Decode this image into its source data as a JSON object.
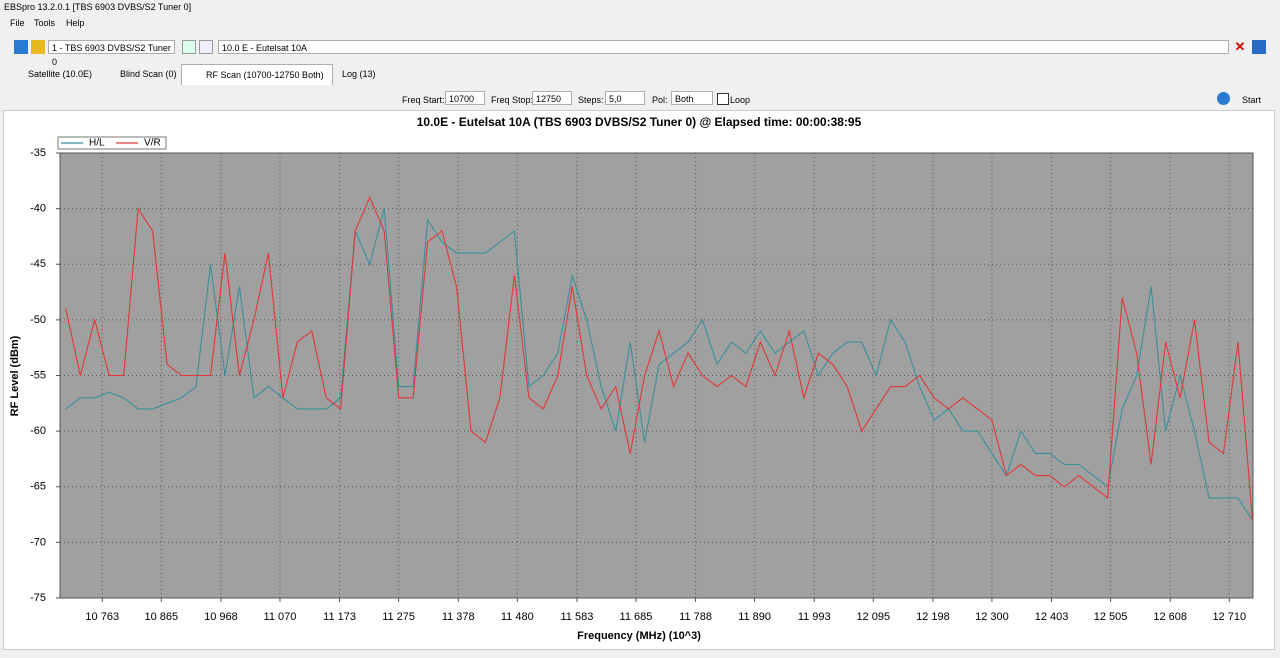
{
  "window": {
    "title": "EBSpro 13.2.0.1 [TBS 6903 DVBS/S2 Tuner 0]",
    "menu": [
      "File",
      "Tools",
      "Help"
    ]
  },
  "toolbar": {
    "tuner": "1 - TBS 6903 DVBS/S2 Tuner 0",
    "satellite": "10.0 E - Eutelsat 10A"
  },
  "tabs": [
    "Satellite (10.0E)",
    "Blind Scan (0)",
    "RF Scan (10700-12750 Both)",
    "Log (13)"
  ],
  "controls": {
    "freq_start_label": "Freq Start:",
    "freq_start": "10700",
    "freq_stop_label": "Freq Stop:",
    "freq_stop": "12750",
    "steps_label": "Steps:",
    "steps": "5,0",
    "pol_label": "Pol:",
    "pol": "Both",
    "loop": "Loop",
    "start": "Start"
  },
  "chart_data": {
    "type": "line",
    "title": "10.0E - Eutelsat 10A (TBS 6903 DVBS/S2 Tuner 0) @ Elapsed time: 00:00:38:95",
    "x_label": "Frequency (MHz) (10^3)",
    "y_label": "RF Level (dBm)",
    "grid": true,
    "xlim": [
      10690,
      12751
    ],
    "ylim": [
      -75,
      -35
    ],
    "xticks": [
      {
        "value": 10763,
        "label": "10 763"
      },
      {
        "value": 10865,
        "label": "10 865"
      },
      {
        "value": 10968,
        "label": "10 968"
      },
      {
        "value": 11070,
        "label": "11 070"
      },
      {
        "value": 11173,
        "label": "11 173"
      },
      {
        "value": 11275,
        "label": "11 275"
      },
      {
        "value": 11378,
        "label": "11 378"
      },
      {
        "value": 11480,
        "label": "11 480"
      },
      {
        "value": 11583,
        "label": "11 583"
      },
      {
        "value": 11685,
        "label": "11 685"
      },
      {
        "value": 11788,
        "label": "11 788"
      },
      {
        "value": 11890,
        "label": "11 890"
      },
      {
        "value": 11993,
        "label": "11 993"
      },
      {
        "value": 12095,
        "label": "12 095"
      },
      {
        "value": 12198,
        "label": "12 198"
      },
      {
        "value": 12300,
        "label": "12 300"
      },
      {
        "value": 12403,
        "label": "12 403"
      },
      {
        "value": 12505,
        "label": "12 505"
      },
      {
        "value": 12608,
        "label": "12 608"
      },
      {
        "value": 12710,
        "label": "12 710"
      }
    ],
    "yticks": [
      -35,
      -40,
      -45,
      -50,
      -55,
      -60,
      -65,
      -70,
      -75
    ],
    "x": [
      10700,
      10725,
      10750,
      10775,
      10800,
      10825,
      10850,
      10875,
      10900,
      10925,
      10950,
      10975,
      11000,
      11025,
      11050,
      11075,
      11100,
      11125,
      11150,
      11175,
      11200,
      11225,
      11250,
      11275,
      11300,
      11325,
      11350,
      11375,
      11400,
      11425,
      11450,
      11475,
      11500,
      11525,
      11550,
      11575,
      11600,
      11625,
      11650,
      11675,
      11700,
      11725,
      11750,
      11775,
      11800,
      11825,
      11850,
      11875,
      11900,
      11925,
      11950,
      11975,
      12000,
      12025,
      12050,
      12075,
      12100,
      12125,
      12150,
      12175,
      12200,
      12225,
      12250,
      12275,
      12300,
      12325,
      12350,
      12375,
      12400,
      12425,
      12450,
      12475,
      12500,
      12525,
      12550,
      12575,
      12600,
      12625,
      12650,
      12675,
      12700,
      12725,
      12750
    ],
    "series": [
      {
        "name": "H/L",
        "color": "#3a8f9c",
        "values": [
          -58,
          -57,
          -57,
          -56.5,
          -57,
          -58,
          -58,
          -57.5,
          -57,
          -56,
          -45,
          -55,
          -47,
          -57,
          -56,
          -57,
          -58,
          -58,
          -58,
          -57,
          -42,
          -45,
          -40,
          -56,
          -56,
          -41,
          -43,
          -44,
          -44,
          -44,
          -43,
          -42,
          -56,
          -55,
          -53,
          -46,
          -50,
          -56,
          -60,
          -52,
          -61,
          -54,
          -53,
          -52,
          -50,
          -54,
          -52,
          -53,
          -51,
          -53,
          -52,
          -51,
          -55,
          -53,
          -52,
          -52,
          -55,
          -50,
          -52,
          -56,
          -59,
          -58,
          -60,
          -60,
          -62,
          -64,
          -60,
          -62,
          -62,
          -63,
          -63,
          -64,
          -65,
          -58,
          -55,
          -47,
          -60,
          -55,
          -60,
          -66,
          -66,
          -66,
          -68
        ]
      },
      {
        "name": "V/R",
        "color": "#e03838",
        "values": [
          -49,
          -55,
          -50,
          -55,
          -55,
          -40,
          -42,
          -54,
          -55,
          -55,
          -55,
          -44,
          -55,
          -50,
          -44,
          -57,
          -52,
          -51,
          -57,
          -58,
          -42,
          -39,
          -42,
          -57,
          -57,
          -43,
          -42,
          -47,
          -60,
          -61,
          -57,
          -46,
          -57,
          -58,
          -55,
          -47,
          -55,
          -58,
          -56,
          -62,
          -55,
          -51,
          -56,
          -53,
          -55,
          -56,
          -55,
          -56,
          -52,
          -55,
          -51,
          -57,
          -53,
          -54,
          -56,
          -60,
          -58,
          -56,
          -56,
          -55,
          -57,
          -58,
          -57,
          -58,
          -59,
          -64,
          -63,
          -64,
          -64,
          -65,
          -64,
          -65,
          -66,
          -48,
          -53,
          -63,
          -52,
          -57,
          -50,
          -61,
          -62,
          -52,
          -68
        ]
      }
    ]
  }
}
